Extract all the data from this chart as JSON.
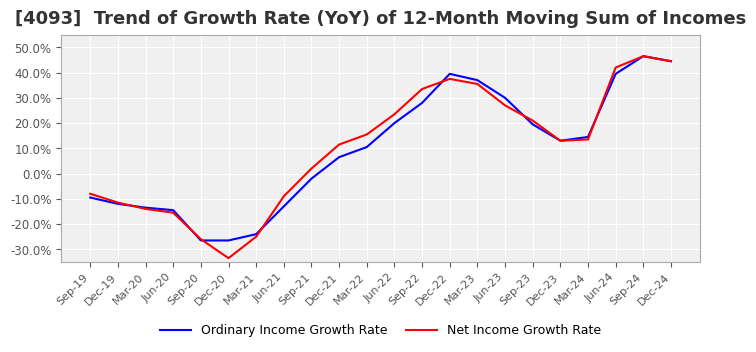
{
  "title": "[4093]  Trend of Growth Rate (YoY) of 12-Month Moving Sum of Incomes",
  "title_fontsize": 13,
  "background_color": "#ffffff",
  "plot_background_color": "#f0f0f0",
  "grid_color": "#ffffff",
  "ylim": [
    -0.35,
    0.55
  ],
  "yticks": [
    -0.3,
    -0.2,
    -0.1,
    0.0,
    0.1,
    0.2,
    0.3,
    0.4,
    0.5
  ],
  "legend_labels": [
    "Ordinary Income Growth Rate",
    "Net Income Growth Rate"
  ],
  "legend_colors": [
    "#0000ff",
    "#ff0000"
  ],
  "x_labels": [
    "Sep-19",
    "Dec-19",
    "Mar-20",
    "Jun-20",
    "Sep-20",
    "Dec-20",
    "Mar-21",
    "Jun-21",
    "Sep-21",
    "Dec-21",
    "Mar-22",
    "Jun-22",
    "Sep-22",
    "Dec-22",
    "Mar-23",
    "Jun-23",
    "Sep-23",
    "Dec-23",
    "Mar-24",
    "Jun-24",
    "Sep-24",
    "Dec-24"
  ],
  "ordinary_income": [
    -0.095,
    -0.12,
    -0.135,
    -0.145,
    -0.265,
    -0.265,
    -0.24,
    -0.13,
    -0.02,
    0.065,
    0.105,
    0.2,
    0.28,
    0.395,
    0.37,
    0.3,
    0.195,
    0.13,
    0.145,
    0.395,
    0.465,
    0.445
  ],
  "net_income": [
    -0.08,
    -0.115,
    -0.14,
    -0.155,
    -0.26,
    -0.335,
    -0.25,
    -0.09,
    0.02,
    0.115,
    0.155,
    0.235,
    0.335,
    0.375,
    0.355,
    0.27,
    0.21,
    0.13,
    0.135,
    0.42,
    0.465,
    0.445
  ]
}
